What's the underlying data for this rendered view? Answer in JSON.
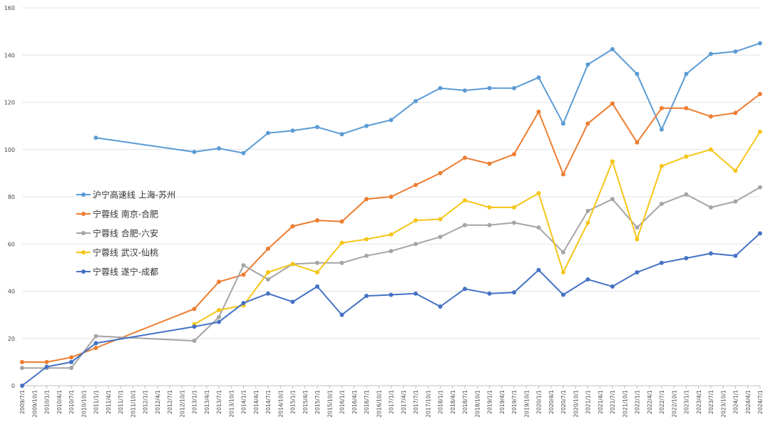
{
  "chart_data": {
    "type": "line",
    "title": "",
    "xlabel": "",
    "ylabel": "",
    "ylim": [
      0,
      160
    ],
    "yticks": [
      0,
      20,
      40,
      60,
      80,
      100,
      120,
      140,
      160
    ],
    "grid": "horizontal",
    "legend_position": "left-middle",
    "x": [
      "2009/7/1",
      "2009/10/1",
      "2010/1/1",
      "2010/4/1",
      "2010/7/1",
      "2010/10/1",
      "2011/1/1",
      "2011/4/1",
      "2011/7/1",
      "2011/10/1",
      "2012/1/1",
      "2012/4/1",
      "2012/7/1",
      "2012/10/1",
      "2013/1/1",
      "2013/4/1",
      "2013/7/1",
      "2013/10/1",
      "2014/1/1",
      "2014/4/1",
      "2014/7/1",
      "2014/10/1",
      "2015/1/1",
      "2015/4/1",
      "2015/7/1",
      "2015/10/1",
      "2016/1/1",
      "2016/4/1",
      "2016/7/1",
      "2016/10/1",
      "2017/1/1",
      "2017/4/1",
      "2017/7/1",
      "2017/10/1",
      "2018/1/1",
      "2018/4/1",
      "2018/7/1",
      "2018/10/1",
      "2019/1/1",
      "2019/4/1",
      "2019/7/1",
      "2019/10/1",
      "2020/1/1",
      "2020/4/1",
      "2020/7/1",
      "2020/10/1",
      "2021/1/1",
      "2021/4/1",
      "2021/7/1",
      "2021/10/1",
      "2022/1/1",
      "2022/4/1",
      "2022/7/1",
      "2022/10/1",
      "2023/1/1",
      "2023/4/1",
      "2023/7/1",
      "2023/10/1",
      "2024/1/1",
      "2024/4/1",
      "2024/7/1"
    ],
    "series": [
      {
        "name": "沪宁高速线 上海-苏州",
        "color": "#5b9bd5",
        "points": [
          [
            "2011/1/1",
            105
          ],
          [
            "2013/1/1",
            99
          ],
          [
            "2013/7/1",
            100.5
          ],
          [
            "2014/1/1",
            98.5
          ],
          [
            "2014/7/1",
            107
          ],
          [
            "2015/1/1",
            108
          ],
          [
            "2015/7/1",
            109.5
          ],
          [
            "2016/1/1",
            106.5
          ],
          [
            "2016/7/1",
            110
          ],
          [
            "2017/1/1",
            112.5
          ],
          [
            "2017/7/1",
            120.5
          ],
          [
            "2018/1/1",
            126
          ],
          [
            "2018/7/1",
            125
          ],
          [
            "2019/1/1",
            126
          ],
          [
            "2019/7/1",
            126
          ],
          [
            "2020/1/1",
            130.5
          ],
          [
            "2020/7/1",
            111
          ],
          [
            "2021/1/1",
            136
          ],
          [
            "2021/7/1",
            142.5
          ],
          [
            "2022/1/1",
            132
          ],
          [
            "2022/7/1",
            108.5
          ],
          [
            "2023/1/1",
            132
          ],
          [
            "2023/7/1",
            140.5
          ],
          [
            "2024/1/1",
            141.5
          ],
          [
            "2024/7/1",
            145
          ]
        ]
      },
      {
        "name": "宁蓉线 南京-合肥",
        "color": "#ed7d31",
        "points": [
          [
            "2009/7/1",
            10
          ],
          [
            "2010/1/1",
            10
          ],
          [
            "2010/7/1",
            12
          ],
          [
            "2011/1/1",
            16
          ],
          [
            "2013/1/1",
            32.5
          ],
          [
            "2013/7/1",
            44
          ],
          [
            "2014/1/1",
            47
          ],
          [
            "2014/7/1",
            58
          ],
          [
            "2015/1/1",
            67.5
          ],
          [
            "2015/7/1",
            70
          ],
          [
            "2016/1/1",
            69.5
          ],
          [
            "2016/7/1",
            79
          ],
          [
            "2017/1/1",
            80
          ],
          [
            "2017/7/1",
            85
          ],
          [
            "2018/1/1",
            90
          ],
          [
            "2018/7/1",
            96.5
          ],
          [
            "2019/1/1",
            94
          ],
          [
            "2019/7/1",
            98
          ],
          [
            "2020/1/1",
            116
          ],
          [
            "2020/7/1",
            89.5
          ],
          [
            "2021/1/1",
            111
          ],
          [
            "2021/7/1",
            119.5
          ],
          [
            "2022/1/1",
            103
          ],
          [
            "2022/7/1",
            117.5
          ],
          [
            "2023/1/1",
            117.5
          ],
          [
            "2023/7/1",
            114
          ],
          [
            "2024/1/1",
            115.5
          ],
          [
            "2024/7/1",
            123.5
          ]
        ]
      },
      {
        "name": "宁蓉线 合肥-六安",
        "color": "#a5a5a5",
        "points": [
          [
            "2009/7/1",
            7.5
          ],
          [
            "2010/1/1",
            7.5
          ],
          [
            "2010/7/1",
            7.5
          ],
          [
            "2011/1/1",
            21
          ],
          [
            "2013/1/1",
            19
          ],
          [
            "2013/7/1",
            29
          ],
          [
            "2014/1/1",
            51
          ],
          [
            "2014/7/1",
            45
          ],
          [
            "2015/1/1",
            51.5
          ],
          [
            "2015/7/1",
            52
          ],
          [
            "2016/1/1",
            52
          ],
          [
            "2016/7/1",
            55
          ],
          [
            "2017/1/1",
            57
          ],
          [
            "2017/7/1",
            60
          ],
          [
            "2018/1/1",
            63
          ],
          [
            "2018/7/1",
            68
          ],
          [
            "2019/1/1",
            68
          ],
          [
            "2019/7/1",
            69
          ],
          [
            "2020/1/1",
            67
          ],
          [
            "2020/7/1",
            56.5
          ],
          [
            "2021/1/1",
            74
          ],
          [
            "2021/7/1",
            79
          ],
          [
            "2022/1/1",
            67
          ],
          [
            "2022/7/1",
            77
          ],
          [
            "2023/1/1",
            81
          ],
          [
            "2023/7/1",
            75.5
          ],
          [
            "2024/1/1",
            78
          ],
          [
            "2024/7/1",
            84
          ]
        ]
      },
      {
        "name": "宁蓉线 武汉-仙桃",
        "color": "#f5c518",
        "points": [
          [
            "2013/1/1",
            26
          ],
          [
            "2013/7/1",
            32
          ],
          [
            "2014/1/1",
            34
          ],
          [
            "2014/7/1",
            48
          ],
          [
            "2015/1/1",
            51.5
          ],
          [
            "2015/7/1",
            48
          ],
          [
            "2016/1/1",
            60.5
          ],
          [
            "2016/7/1",
            62
          ],
          [
            "2017/1/1",
            64
          ],
          [
            "2017/7/1",
            70
          ],
          [
            "2018/1/1",
            70.5
          ],
          [
            "2018/7/1",
            78.5
          ],
          [
            "2019/1/1",
            75.5
          ],
          [
            "2019/7/1",
            75.5
          ],
          [
            "2020/1/1",
            81.5
          ],
          [
            "2020/7/1",
            48
          ],
          [
            "2021/1/1",
            69
          ],
          [
            "2021/7/1",
            95
          ],
          [
            "2022/1/1",
            62
          ],
          [
            "2022/7/1",
            93
          ],
          [
            "2023/1/1",
            97
          ],
          [
            "2023/7/1",
            100
          ],
          [
            "2024/1/1",
            91
          ],
          [
            "2024/7/1",
            107.5
          ]
        ]
      },
      {
        "name": "宁蓉线 遂宁-成都",
        "color": "#4472c4",
        "points": [
          [
            "2009/7/1",
            0
          ],
          [
            "2010/1/1",
            8
          ],
          [
            "2010/7/1",
            10
          ],
          [
            "2011/1/1",
            18
          ],
          [
            "2013/1/1",
            25
          ],
          [
            "2013/7/1",
            27
          ],
          [
            "2014/1/1",
            35
          ],
          [
            "2014/7/1",
            39
          ],
          [
            "2015/1/1",
            35.5
          ],
          [
            "2015/7/1",
            42
          ],
          [
            "2016/1/1",
            30
          ],
          [
            "2016/7/1",
            38
          ],
          [
            "2017/1/1",
            38.5
          ],
          [
            "2017/7/1",
            39
          ],
          [
            "2018/1/1",
            33.5
          ],
          [
            "2018/7/1",
            41
          ],
          [
            "2019/1/1",
            39
          ],
          [
            "2019/7/1",
            39.5
          ],
          [
            "2020/1/1",
            49
          ],
          [
            "2020/7/1",
            38.5
          ],
          [
            "2021/1/1",
            45
          ],
          [
            "2021/7/1",
            42
          ],
          [
            "2022/1/1",
            48
          ],
          [
            "2022/7/1",
            52
          ],
          [
            "2023/1/1",
            54
          ],
          [
            "2023/7/1",
            56
          ],
          [
            "2024/1/1",
            55
          ],
          [
            "2024/7/1",
            64.5
          ]
        ]
      }
    ]
  }
}
